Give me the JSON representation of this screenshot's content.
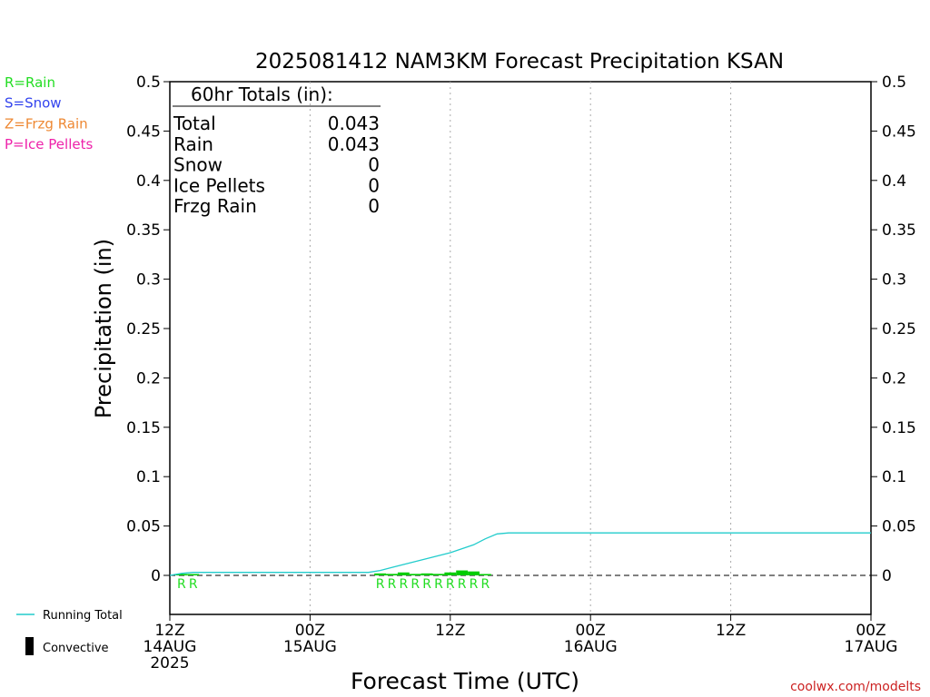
{
  "chart_data": {
    "type": "bar",
    "title": "2025081412 NAM3KM Forecast Precipitation KSAN",
    "xlabel": "Forecast Time (UTC)",
    "ylabel": "Precipitation (in)",
    "ylim": [
      0,
      0.5
    ],
    "y_ticks": [
      "0",
      "0.05",
      "0.1",
      "0.15",
      "0.2",
      "0.25",
      "0.3",
      "0.35",
      "0.4",
      "0.45",
      "0.5"
    ],
    "x_range_hours": [
      0,
      60
    ],
    "x_ticks": [
      {
        "hour": 0,
        "line1": "12Z",
        "line2": "14AUG",
        "line3": "2025"
      },
      {
        "hour": 12,
        "line1": "00Z",
        "line2": "15AUG",
        "line3": ""
      },
      {
        "hour": 24,
        "line1": "12Z",
        "line2": "",
        "line3": ""
      },
      {
        "hour": 36,
        "line1": "00Z",
        "line2": "16AUG",
        "line3": ""
      },
      {
        "hour": 48,
        "line1": "12Z",
        "line2": "",
        "line3": ""
      },
      {
        "hour": 60,
        "line1": "00Z",
        "line2": "17AUG",
        "line3": ""
      }
    ],
    "legend_types": [
      {
        "label": "R=Rain",
        "color": "#22dd22"
      },
      {
        "label": "S=Snow",
        "color": "#3344ee"
      },
      {
        "label": "Z=Frzg Rain",
        "color": "#ee8833"
      },
      {
        "label": "P=Ice Pellets",
        "color": "#ee22aa"
      }
    ],
    "legend_lines": [
      {
        "label": "Running Total",
        "color": "#22cccc"
      },
      {
        "label": "Convective",
        "color": "#000000"
      }
    ],
    "totals": {
      "header": "60hr Totals (in):",
      "rows": [
        {
          "label": "Total",
          "value": "0.043"
        },
        {
          "label": "Rain",
          "value": "0.043"
        },
        {
          "label": "Snow",
          "value": "0"
        },
        {
          "label": "Ice Pellets",
          "value": "0"
        },
        {
          "label": "Frzg Rain",
          "value": "0"
        }
      ]
    },
    "series": [
      {
        "name": "Running Total",
        "color": "#22cccc",
        "x": [
          0,
          1,
          2,
          3,
          4,
          5,
          6,
          7,
          8,
          9,
          10,
          11,
          12,
          13,
          14,
          15,
          16,
          17,
          18,
          19,
          20,
          21,
          22,
          23,
          24,
          25,
          26,
          27,
          28,
          29,
          30,
          35,
          40,
          45,
          50,
          55,
          60
        ],
        "y": [
          0,
          0.002,
          0.003,
          0.003,
          0.003,
          0.003,
          0.003,
          0.003,
          0.003,
          0.003,
          0.003,
          0.003,
          0.003,
          0.003,
          0.003,
          0.003,
          0.003,
          0.003,
          0.005,
          0.008,
          0.011,
          0.014,
          0.017,
          0.02,
          0.023,
          0.027,
          0.031,
          0.037,
          0.042,
          0.043,
          0.043,
          0.043,
          0.043,
          0.043,
          0.043,
          0.043,
          0.043
        ]
      }
    ],
    "bars": {
      "name": "Rain",
      "color": "#00cc00",
      "width_hours": 1,
      "x": [
        1,
        2,
        18,
        19,
        20,
        21,
        22,
        23,
        24,
        25,
        26,
        27
      ],
      "y": [
        0.0005,
        0.0005,
        0.002,
        0.0015,
        0.003,
        0.0015,
        0.002,
        0.0015,
        0.003,
        0.005,
        0.004,
        0.0005
      ],
      "markers": [
        "R",
        "R",
        "R",
        "R",
        "R",
        "R",
        "R",
        "R",
        "R",
        "R",
        "R",
        "R"
      ]
    },
    "credit": "coolwx.com/modelts"
  }
}
